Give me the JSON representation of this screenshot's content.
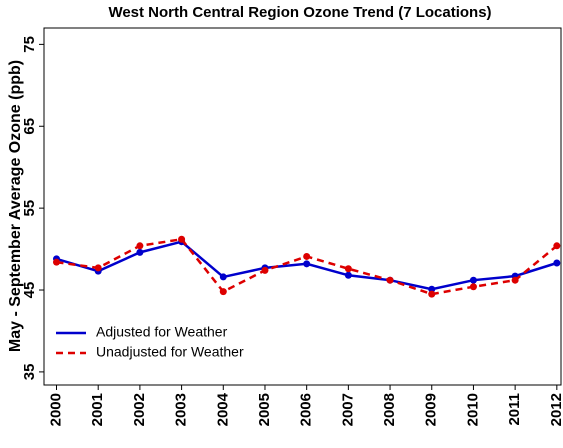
{
  "chart_data": {
    "type": "line",
    "title": "West North Central Region Ozone Trend (7 Locations)",
    "y_label": "May - September Average Ozone (ppb)",
    "x": [
      2000,
      2001,
      2002,
      2003,
      2004,
      2005,
      2006,
      2007,
      2008,
      2009,
      2010,
      2011,
      2012
    ],
    "series": [
      {
        "name": "Adjusted for Weather",
        "color": "#0000cc",
        "style": "solid",
        "values": [
          48.8,
          47.3,
          49.6,
          50.9,
          46.6,
          47.7,
          48.2,
          46.8,
          46.2,
          45.1,
          46.2,
          46.7,
          48.3
        ]
      },
      {
        "name": "Unadjusted for Weather",
        "color": "#dd0000",
        "style": "dashed",
        "values": [
          48.4,
          47.7,
          50.4,
          51.2,
          44.8,
          47.4,
          49.1,
          47.6,
          46.2,
          44.5,
          45.4,
          46.2,
          50.4
        ]
      }
    ],
    "xlim": [
      1999.7,
      2012.1
    ],
    "xticks": [
      2000,
      2001,
      2002,
      2003,
      2004,
      2005,
      2006,
      2007,
      2008,
      2009,
      2010,
      2011,
      2012
    ],
    "ylim": [
      33.4,
      77
    ],
    "yticks": [
      35,
      45,
      55,
      65,
      75
    ],
    "grid": false,
    "legend": "bottom-left"
  }
}
